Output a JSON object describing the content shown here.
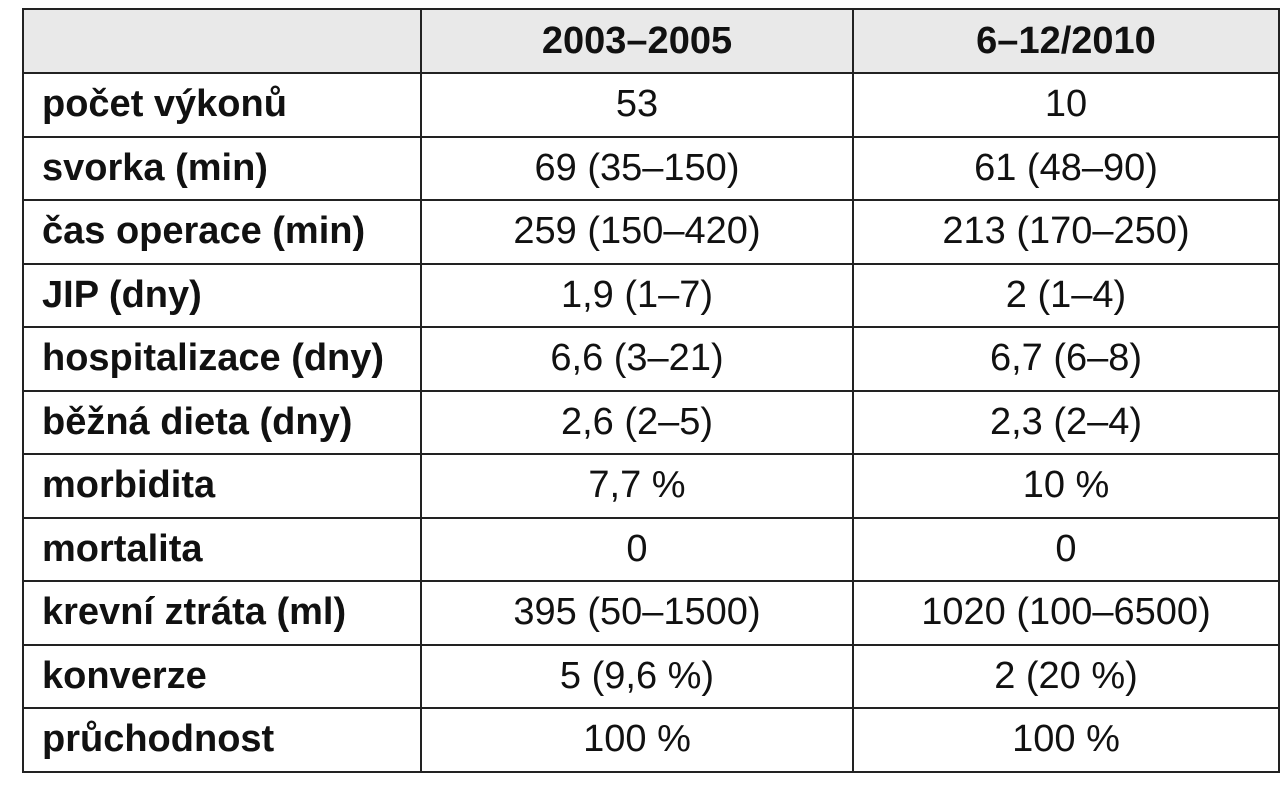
{
  "table": {
    "headers": [
      "",
      "2003–2005",
      "6–12/2010"
    ],
    "rows": [
      {
        "label": "počet výkonů",
        "v1": "53",
        "v2": "10"
      },
      {
        "label": "svorka (min)",
        "v1": "69 (35–150)",
        "v2": "61 (48–90)"
      },
      {
        "label": "čas operace (min)",
        "v1": "259 (150–420)",
        "v2": "213 (170–250)"
      },
      {
        "label": "JIP (dny)",
        "v1": "1,9 (1–7)",
        "v2": "2 (1–4)"
      },
      {
        "label": "hospitalizace (dny)",
        "v1": "6,6 (3–21)",
        "v2": "6,7 (6–8)"
      },
      {
        "label": "běžná dieta (dny)",
        "v1": "2,6 (2–5)",
        "v2": "2,3 (2–4)"
      },
      {
        "label": "morbidita",
        "v1": "7,7 %",
        "v2": "10 %"
      },
      {
        "label": "mortalita",
        "v1": "0",
        "v2": "0"
      },
      {
        "label": "krevní ztráta (ml)",
        "v1": "395 (50–1500)",
        "v2": "1020 (100–6500)"
      },
      {
        "label": "konverze",
        "v1": "5 (9,6 %)",
        "v2": "2 (20 %)"
      },
      {
        "label": "průchodnost",
        "v1": "100 %",
        "v2": "100 %"
      }
    ]
  },
  "colors": {
    "header_background": "#e9e9e9",
    "border": "#222222",
    "text": "#111111"
  }
}
